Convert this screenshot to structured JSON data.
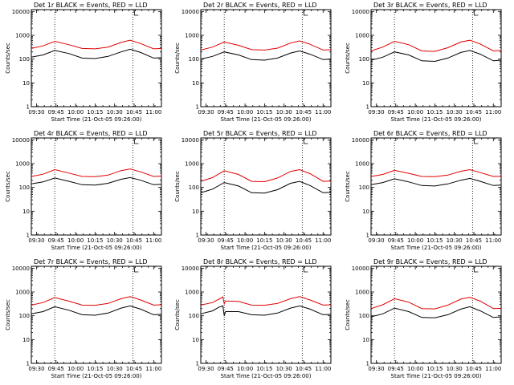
{
  "colors": {
    "events": "#000000",
    "lld": "#e00000",
    "axes": "#000000",
    "background": "#ffffff"
  },
  "common": {
    "ylabel": "Counts/sec",
    "xlabel": "Start Time (21-Oct-05 09:26:00)",
    "xticks": [
      "09:30",
      "09:45",
      "10:00",
      "10:15",
      "10:30",
      "10:45",
      "11:00"
    ],
    "yticks": [
      "1",
      "10",
      "100",
      "1000",
      "10000"
    ]
  },
  "chart_data": [
    {
      "type": "line",
      "title": "Det 1r BLACK = Events, RED = LLD",
      "x_range": [
        "09:26",
        "11:06"
      ],
      "y_scale": "log",
      "ylim": [
        1,
        12000
      ],
      "grid": false,
      "vertical_markers": [
        "09:44",
        "10:44"
      ],
      "x": [
        "09:26",
        "09:35",
        "09:44",
        "09:55",
        "10:05",
        "10:15",
        "10:25",
        "10:35",
        "10:42",
        "10:50",
        "11:00",
        "11:06"
      ],
      "series": [
        {
          "name": "BLACK = Events",
          "values": [
            120,
            150,
            230,
            170,
            110,
            105,
            130,
            200,
            260,
            190,
            110,
            115
          ]
        },
        {
          "name": "RED = LLD",
          "values": [
            280,
            360,
            560,
            400,
            280,
            270,
            320,
            500,
            620,
            450,
            270,
            280
          ]
        }
      ]
    },
    {
      "type": "line",
      "title": "Det 2r BLACK = Events, RED = LLD",
      "x_range": [
        "09:26",
        "11:06"
      ],
      "y_scale": "log",
      "ylim": [
        1,
        12000
      ],
      "grid": false,
      "vertical_markers": [
        "09:44",
        "10:44"
      ],
      "x": [
        "09:26",
        "09:35",
        "09:44",
        "09:55",
        "10:05",
        "10:15",
        "10:25",
        "10:35",
        "10:42",
        "10:50",
        "11:00",
        "11:06"
      ],
      "series": [
        {
          "name": "BLACK = Events",
          "values": [
            100,
            130,
            200,
            150,
            95,
            90,
            110,
            180,
            220,
            160,
            95,
            100
          ]
        },
        {
          "name": "RED = LLD",
          "values": [
            240,
            320,
            520,
            380,
            250,
            240,
            290,
            470,
            580,
            420,
            240,
            250
          ]
        }
      ]
    },
    {
      "type": "line",
      "title": "Det 3r BLACK = Events, RED = LLD",
      "x_range": [
        "09:26",
        "11:06"
      ],
      "y_scale": "log",
      "ylim": [
        1,
        12000
      ],
      "grid": false,
      "vertical_markers": [
        "09:44",
        "10:44"
      ],
      "x": [
        "09:26",
        "09:35",
        "09:44",
        "09:55",
        "10:05",
        "10:15",
        "10:25",
        "10:35",
        "10:42",
        "10:50",
        "11:00",
        "11:06"
      ],
      "series": [
        {
          "name": "BLACK = Events",
          "values": [
            90,
            120,
            200,
            150,
            85,
            80,
            110,
            190,
            230,
            160,
            85,
            90
          ]
        },
        {
          "name": "RED = LLD",
          "values": [
            220,
            320,
            560,
            400,
            220,
            210,
            300,
            520,
            620,
            430,
            220,
            230
          ]
        }
      ]
    },
    {
      "type": "line",
      "title": "Det 4r BLACK = Events, RED = LLD",
      "x_range": [
        "09:26",
        "11:06"
      ],
      "y_scale": "log",
      "ylim": [
        1,
        12000
      ],
      "grid": false,
      "vertical_markers": [
        "09:44",
        "10:44"
      ],
      "x": [
        "09:26",
        "09:35",
        "09:44",
        "09:55",
        "10:05",
        "10:15",
        "10:25",
        "10:35",
        "10:42",
        "10:50",
        "11:00",
        "11:06"
      ],
      "series": [
        {
          "name": "BLACK = Events",
          "values": [
            140,
            170,
            250,
            180,
            130,
            125,
            150,
            220,
            260,
            200,
            130,
            135
          ]
        },
        {
          "name": "RED = LLD",
          "values": [
            290,
            360,
            560,
            400,
            290,
            285,
            330,
            510,
            600,
            450,
            290,
            300
          ]
        }
      ]
    },
    {
      "type": "line",
      "title": "Det 5r BLACK = Events, RED = LLD",
      "x_range": [
        "09:26",
        "11:06"
      ],
      "y_scale": "log",
      "ylim": [
        1,
        12000
      ],
      "grid": false,
      "vertical_markers": [
        "09:44",
        "10:44"
      ],
      "x": [
        "09:26",
        "09:35",
        "09:44",
        "09:55",
        "10:05",
        "10:15",
        "10:25",
        "10:35",
        "10:42",
        "10:50",
        "11:00",
        "11:06"
      ],
      "series": [
        {
          "name": "BLACK = Events",
          "values": [
            60,
            85,
            160,
            115,
            60,
            58,
            80,
            150,
            180,
            120,
            60,
            62
          ]
        },
        {
          "name": "RED = LLD",
          "values": [
            180,
            260,
            500,
            350,
            180,
            175,
            250,
            470,
            560,
            380,
            180,
            185
          ]
        }
      ]
    },
    {
      "type": "line",
      "title": "Det 6r BLACK = Events, RED = LLD",
      "x_range": [
        "09:26",
        "11:06"
      ],
      "y_scale": "log",
      "ylim": [
        1,
        12000
      ],
      "grid": false,
      "vertical_markers": [
        "09:44",
        "10:44"
      ],
      "x": [
        "09:26",
        "09:35",
        "09:44",
        "09:55",
        "10:05",
        "10:15",
        "10:25",
        "10:35",
        "10:42",
        "10:50",
        "11:00",
        "11:06"
      ],
      "series": [
        {
          "name": "BLACK = Events",
          "values": [
            130,
            160,
            230,
            170,
            120,
            115,
            140,
            200,
            240,
            180,
            120,
            125
          ]
        },
        {
          "name": "RED = LLD",
          "values": [
            290,
            350,
            520,
            390,
            290,
            285,
            330,
            480,
            560,
            420,
            290,
            295
          ]
        }
      ]
    },
    {
      "type": "line",
      "title": "Det 7r BLACK = Events, RED = LLD",
      "x_range": [
        "09:26",
        "11:06"
      ],
      "y_scale": "log",
      "ylim": [
        1,
        12000
      ],
      "grid": false,
      "vertical_markers": [
        "09:44",
        "10:44"
      ],
      "x": [
        "09:26",
        "09:35",
        "09:44",
        "09:55",
        "10:05",
        "10:15",
        "10:25",
        "10:35",
        "10:42",
        "10:50",
        "11:00",
        "11:06"
      ],
      "series": [
        {
          "name": "BLACK = Events",
          "values": [
            120,
            150,
            240,
            170,
            110,
            105,
            130,
            210,
            260,
            190,
            110,
            115
          ]
        },
        {
          "name": "RED = LLD",
          "values": [
            280,
            360,
            580,
            410,
            280,
            275,
            330,
            520,
            640,
            460,
            280,
            290
          ]
        }
      ]
    },
    {
      "type": "line",
      "title": "Det 8r BLACK = Events, RED = LLD",
      "x_range": [
        "09:26",
        "11:06"
      ],
      "y_scale": "log",
      "ylim": [
        1,
        12000
      ],
      "grid": false,
      "vertical_markers": [
        "09:44",
        "10:44"
      ],
      "x": [
        "09:26",
        "09:35",
        "09:40",
        "09:43",
        "09:44",
        "09:45",
        "09:55",
        "10:05",
        "10:15",
        "10:25",
        "10:35",
        "10:42",
        "10:50",
        "11:00",
        "11:06"
      ],
      "series": [
        {
          "name": "BLACK = Events",
          "values": [
            120,
            160,
            230,
            260,
            100,
            150,
            150,
            110,
            105,
            130,
            210,
            260,
            190,
            110,
            115
          ]
        },
        {
          "name": "RED = LLD",
          "values": [
            280,
            360,
            500,
            620,
            320,
            420,
            400,
            280,
            275,
            330,
            520,
            640,
            460,
            280,
            290
          ]
        }
      ]
    },
    {
      "type": "line",
      "title": "Det 9r BLACK = Events, RED = LLD",
      "x_range": [
        "09:26",
        "11:06"
      ],
      "y_scale": "log",
      "ylim": [
        1,
        12000
      ],
      "grid": false,
      "vertical_markers": [
        "09:44",
        "10:44"
      ],
      "x": [
        "09:26",
        "09:35",
        "09:44",
        "09:55",
        "10:05",
        "10:15",
        "10:25",
        "10:35",
        "10:42",
        "10:50",
        "11:00",
        "11:06"
      ],
      "series": [
        {
          "name": "BLACK = Events",
          "values": [
            90,
            120,
            210,
            150,
            85,
            82,
            110,
            190,
            240,
            160,
            85,
            90
          ]
        },
        {
          "name": "RED = LLD",
          "values": [
            200,
            290,
            520,
            370,
            200,
            195,
            280,
            500,
            600,
            410,
            200,
            205
          ]
        }
      ]
    }
  ]
}
